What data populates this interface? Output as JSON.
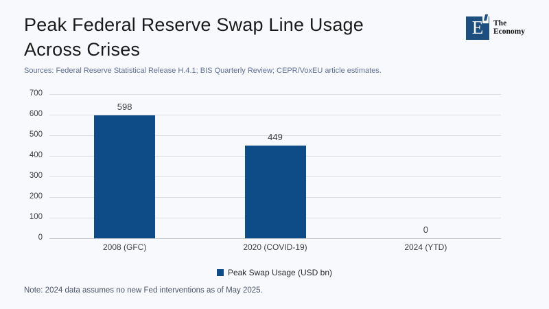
{
  "header": {
    "title_line1": "Peak Federal Reserve Swap Line Usage",
    "title_line2": "Across Crises",
    "sources": "Sources: Federal Reserve Statistical Release H.4.1; BIS Quarterly Review; CEPR/VoxEU article estimates.",
    "logo": {
      "letter": "E",
      "name_line1": "The",
      "name_line2": "Economy",
      "square_color": "#1d4e80"
    }
  },
  "chart_data": {
    "type": "bar",
    "categories": [
      "2008 (GFC)",
      "2020 (COVID-19)",
      "2024 (YTD)"
    ],
    "values": [
      598,
      449,
      0
    ],
    "data_labels": [
      "598",
      "449",
      "0"
    ],
    "series_name": "Peak Swap Usage (USD bn)",
    "ylabel": "",
    "xlabel": "",
    "ylim": [
      0,
      700
    ],
    "yticks": [
      0,
      100,
      200,
      300,
      400,
      500,
      600,
      700
    ],
    "grid": true,
    "legend_position": "bottom",
    "bar_color": "#0d4c87"
  },
  "legend": {
    "label": "Peak Swap Usage (USD bn)",
    "swatch_color": "#0d4c87"
  },
  "footer": {
    "note": "Note: 2024 data assumes no new Fed interventions as of May 2025."
  }
}
